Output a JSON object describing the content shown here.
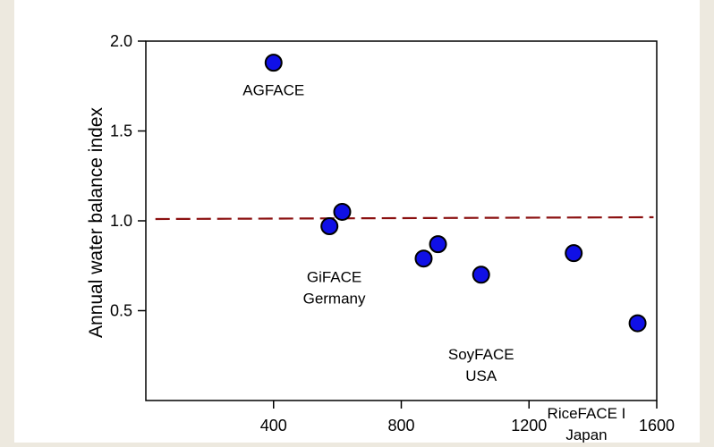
{
  "chart_data": {
    "type": "scatter",
    "title": "",
    "xlabel": "",
    "ylabel": "Annual water balance index",
    "xlim": [
      0,
      1600
    ],
    "ylim": [
      0,
      2.0
    ],
    "xticks": [
      400,
      800,
      1200,
      1600
    ],
    "yticks": [
      0.5,
      1.0,
      1.5,
      2.0
    ],
    "xtick_labels": [
      "400",
      "800",
      "1200",
      "1600"
    ],
    "ytick_labels": [
      "0.5",
      "1.0",
      "1.5",
      "2.0"
    ],
    "grid": false,
    "marker_color": "#1010e6",
    "marker_edge_color": "#000000",
    "reference_line": {
      "style": "dashed",
      "color": "#8b1010",
      "x": [
        30,
        1590
      ],
      "y": [
        1.01,
        1.02
      ]
    },
    "points": [
      {
        "x": 400,
        "y": 1.88
      },
      {
        "x": 575,
        "y": 0.97
      },
      {
        "x": 615,
        "y": 1.05
      },
      {
        "x": 870,
        "y": 0.79
      },
      {
        "x": 915,
        "y": 0.87
      },
      {
        "x": 1050,
        "y": 0.7
      },
      {
        "x": 1340,
        "y": 0.82
      },
      {
        "x": 1540,
        "y": 0.43
      }
    ],
    "annotations": [
      {
        "lines": [
          "AGFACE"
        ],
        "x": 400,
        "y": 1.7
      },
      {
        "lines": [
          "GiFACE",
          "Germany"
        ],
        "x": 590,
        "y": 0.66
      },
      {
        "lines": [
          "SoyFACE",
          "USA"
        ],
        "x": 1050,
        "y": 0.23
      },
      {
        "lines": [
          "RiceFACE I",
          "Japan"
        ],
        "x": 1380,
        "y": -0.1
      }
    ]
  }
}
